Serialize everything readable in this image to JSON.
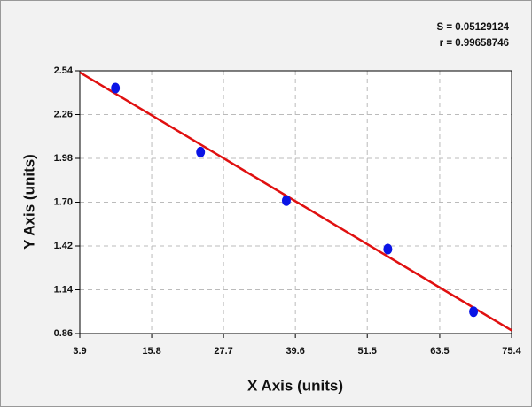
{
  "chart_data": {
    "type": "scatter",
    "x_label": "X Axis (units)",
    "y_label": "Y Axis (units)",
    "annotations": [
      "S = 0.05129124",
      "r = 0.99658746"
    ],
    "x": [
      9.8,
      23.9,
      38.1,
      54.9,
      69.1
    ],
    "series": [
      {
        "color": "#0a14e6",
        "values": [
          2.43,
          2.02,
          1.71,
          1.4,
          1.0
        ]
      }
    ],
    "fit_line": {
      "color": "#e01010",
      "x": [
        3.9,
        75.4
      ],
      "values": [
        2.53,
        0.88
      ]
    },
    "xlim": [
      3.9,
      75.4
    ],
    "xticks": [
      3.9,
      15.8,
      27.7,
      39.6,
      51.5,
      63.5,
      75.4
    ],
    "ylim": [
      0.86,
      2.54
    ],
    "yticks": [
      0.86,
      1.14,
      1.42,
      {
        "value": 1.7,
        "label": "1.70"
      },
      1.98,
      2.26,
      2.54
    ],
    "grid": true
  }
}
